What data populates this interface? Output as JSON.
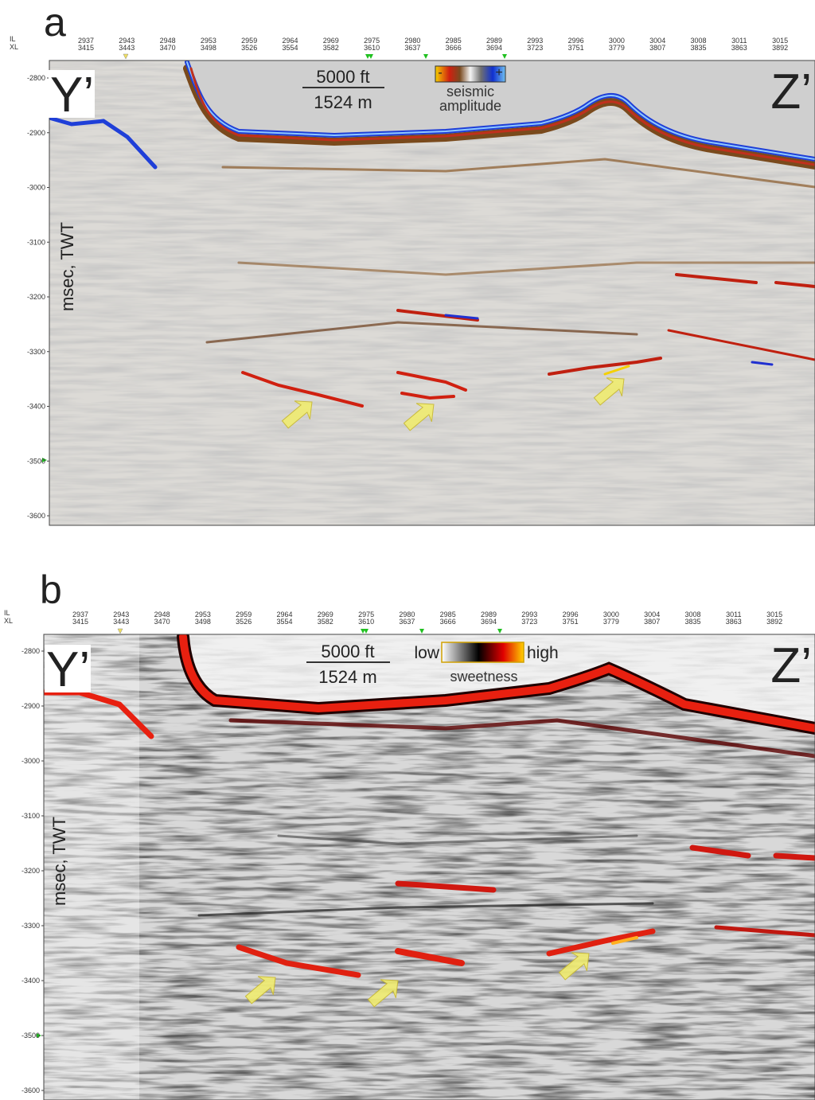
{
  "panels": [
    {
      "label": "a",
      "axis_labels": [
        "IL",
        "XL"
      ],
      "il": [
        2937,
        2943,
        2948,
        2953,
        2959,
        2964,
        2969,
        2975,
        2980,
        2985,
        2989,
        2993,
        2996,
        3000,
        3004,
        3008,
        3011,
        3015
      ],
      "xl": [
        3415,
        3443,
        3470,
        3498,
        3526,
        3554,
        3582,
        3610,
        3637,
        3666,
        3694,
        3723,
        3751,
        3779,
        3807,
        3835,
        3863,
        3892
      ],
      "yticks": [
        -2800,
        -2900,
        -3000,
        -3100,
        -3200,
        -3300,
        -3400,
        -3500,
        -3600
      ],
      "y_axis_title": "msec, TWT",
      "left_tag": "Y’",
      "right_tag": "Z’",
      "scale_ft": "5000 ft",
      "scale_m": "1524 m",
      "colorbar_left": "-",
      "colorbar_right": "+",
      "colorbar_title": [
        "seismic",
        "amplitude"
      ]
    },
    {
      "label": "b",
      "axis_labels": [
        "IL",
        "XL"
      ],
      "il": [
        2937,
        2943,
        2948,
        2953,
        2959,
        2964,
        2969,
        2975,
        2980,
        2985,
        2989,
        2993,
        2996,
        3000,
        3004,
        3008,
        3011,
        3015
      ],
      "xl": [
        3415,
        3443,
        3470,
        3498,
        3526,
        3554,
        3582,
        3610,
        3637,
        3666,
        3694,
        3723,
        3751,
        3779,
        3807,
        3835,
        3863,
        3892
      ],
      "yticks": [
        -2800,
        -2900,
        -3000,
        -3100,
        -3200,
        -3300,
        -3400,
        -3500,
        -3600
      ],
      "y_axis_title": "msec, TWT",
      "left_tag": "Y’",
      "right_tag": "Z’",
      "scale_ft": "5000 ft",
      "scale_m": "1524 m",
      "colorbar_left": "low",
      "colorbar_right": "high",
      "colorbar_title": [
        "sweetness"
      ]
    }
  ]
}
